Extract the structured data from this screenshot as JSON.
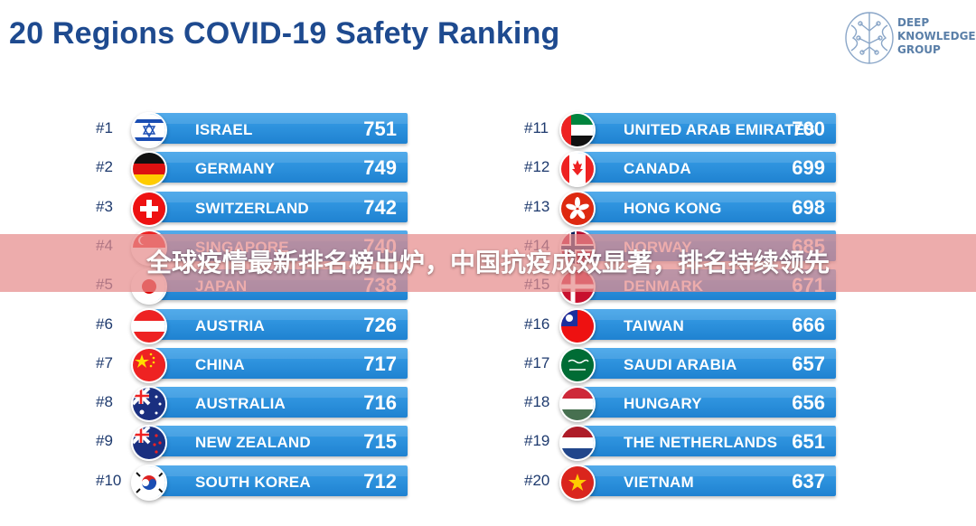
{
  "chart_data": {
    "type": "bar",
    "title": "20 Regions COVID-19 Safety Ranking",
    "ranks": [
      "#1",
      "#2",
      "#3",
      "#4",
      "#5",
      "#6",
      "#7",
      "#8",
      "#9",
      "#10",
      "#11",
      "#12",
      "#13",
      "#14",
      "#15",
      "#16",
      "#17",
      "#18",
      "#19",
      "#20"
    ],
    "categories": [
      "ISRAEL",
      "GERMANY",
      "SWITZERLAND",
      "SINGAPORE",
      "JAPAN",
      "AUSTRIA",
      "CHINA",
      "AUSTRALIA",
      "NEW ZEALAND",
      "SOUTH KOREA",
      "UNITED ARAB EMIRATES",
      "CANADA",
      "HONG KONG",
      "NORWAY",
      "DENMARK",
      "TAIWAN",
      "SAUDI ARABIA",
      "HUNGARY",
      "THE NETHERLANDS",
      "VIETNAM"
    ],
    "values": [
      751,
      749,
      742,
      740,
      738,
      726,
      717,
      716,
      715,
      712,
      700,
      699,
      698,
      685,
      671,
      666,
      657,
      656,
      651,
      637
    ],
    "flags": [
      "israel-flag-icon",
      "germany-flag-icon",
      "switzerland-flag-icon",
      "singapore-flag-icon",
      "japan-flag-icon",
      "austria-flag-icon",
      "china-flag-icon",
      "australia-flag-icon",
      "new-zealand-flag-icon",
      "south-korea-flag-icon",
      "uae-flag-icon",
      "canada-flag-icon",
      "hong-kong-flag-icon",
      "norway-flag-icon",
      "denmark-flag-icon",
      "taiwan-flag-icon",
      "saudi-arabia-flag-icon",
      "hungary-flag-icon",
      "netherlands-flag-icon",
      "vietnam-flag-icon"
    ],
    "bar_color": "#2a8fdc",
    "legend": "none"
  },
  "logo": {
    "lines": [
      "DEEP",
      "KNOWLEDGE",
      "GROUP"
    ],
    "icon": "brain-icon",
    "color": "#5a7fa8"
  },
  "banner": {
    "text": "全球疫情最新排名榜出炉，中国抗疫成效显著，排名持续领先"
  }
}
